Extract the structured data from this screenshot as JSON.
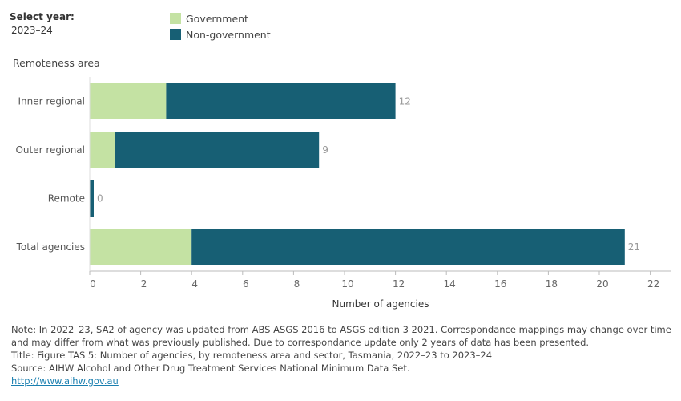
{
  "selector": {
    "label": "Select year:",
    "value": "2023–24"
  },
  "legend": [
    {
      "name": "Government",
      "color": "#c4e2a3"
    },
    {
      "name": "Non-government",
      "color": "#175f74"
    }
  ],
  "chart_data": {
    "type": "bar",
    "orientation": "horizontal",
    "stacked": true,
    "yaxis_title": "Remoteness area",
    "xlabel": "Number of agencies",
    "categories": [
      "Inner regional",
      "Outer regional",
      "Remote",
      "Total agencies"
    ],
    "series": [
      {
        "name": "Government",
        "color": "#c4e2a3",
        "values": [
          3,
          1,
          0,
          4
        ]
      },
      {
        "name": "Non-government",
        "color": "#175f74",
        "values": [
          9,
          8,
          0,
          17
        ]
      }
    ],
    "totals": [
      12,
      9,
      0,
      21
    ],
    "xlim": [
      0,
      22
    ],
    "xticks": [
      0,
      2,
      4,
      6,
      8,
      10,
      12,
      14,
      16,
      18,
      20,
      22
    ],
    "grid": false
  },
  "footer": {
    "note": "Note: In 2022–23, SA2 of agency was updated from ABS ASGS 2016 to ASGS edition 3 2021. Correspondance mappings may change over time and may differ from what was previously published. Due to correspondance update only 2 years of data has been presented.",
    "title": "Title: Figure TAS 5: Number of agencies, by remoteness area and sector, Tasmania, 2022–23 to 2023–24",
    "source": "Source: AIHW Alcohol and Other Drug Treatment Services National Minimum Data Set.",
    "link": "http://www.aihw.gov.au"
  }
}
